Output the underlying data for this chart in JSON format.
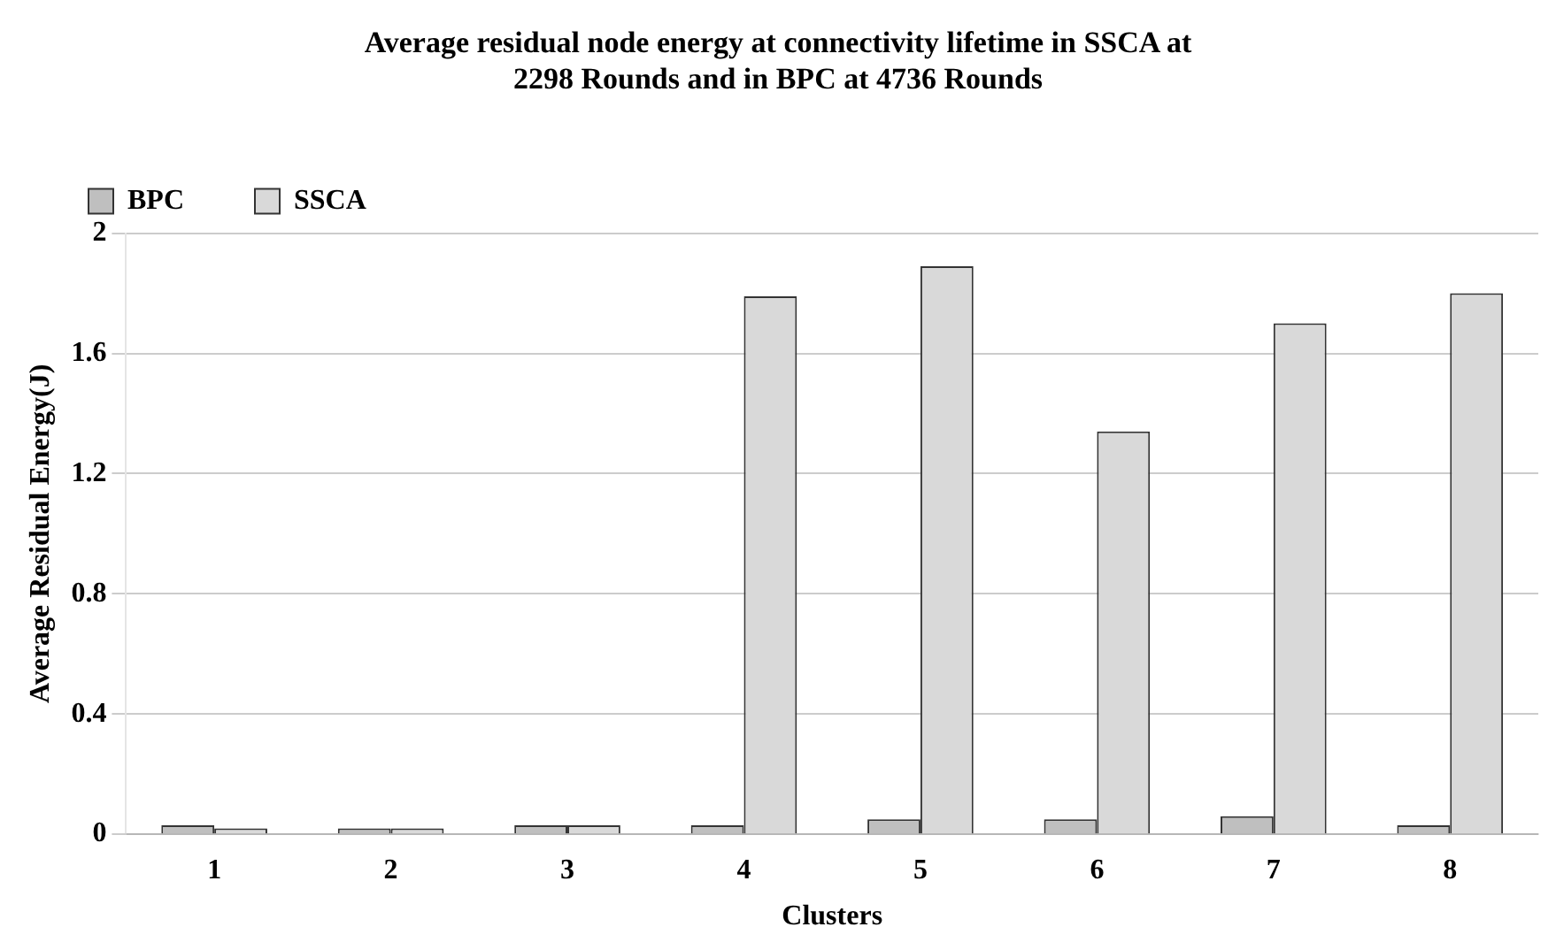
{
  "chart_data": {
    "type": "bar",
    "title": "Average residual node energy at connectivity lifetime in SSCA at 2298 Rounds and in BPC at 4736 Rounds",
    "xlabel": "Clusters",
    "ylabel": "Average Residual Energy(J)",
    "categories": [
      "1",
      "2",
      "3",
      "4",
      "5",
      "6",
      "7",
      "8"
    ],
    "series": [
      {
        "name": "BPC",
        "color": "#bfbfbf",
        "values": [
          0.03,
          0.02,
          0.03,
          0.03,
          0.05,
          0.05,
          0.06,
          0.03
        ]
      },
      {
        "name": "SSCA",
        "color": "#d9d9d9",
        "values": [
          0.02,
          0.02,
          0.03,
          1.79,
          1.89,
          1.34,
          1.7,
          1.8
        ]
      }
    ],
    "ylim": [
      0,
      2
    ],
    "yticks": [
      {
        "value": 0,
        "label": "0"
      },
      {
        "value": 0.4,
        "label": "0.4"
      },
      {
        "value": 0.8,
        "label": "0.8"
      },
      {
        "value": 1.2,
        "label": "1.2"
      },
      {
        "value": 1.6,
        "label": "1.6"
      },
      {
        "value": 2,
        "label": "2"
      }
    ],
    "grid": "y",
    "legend": "top left"
  }
}
